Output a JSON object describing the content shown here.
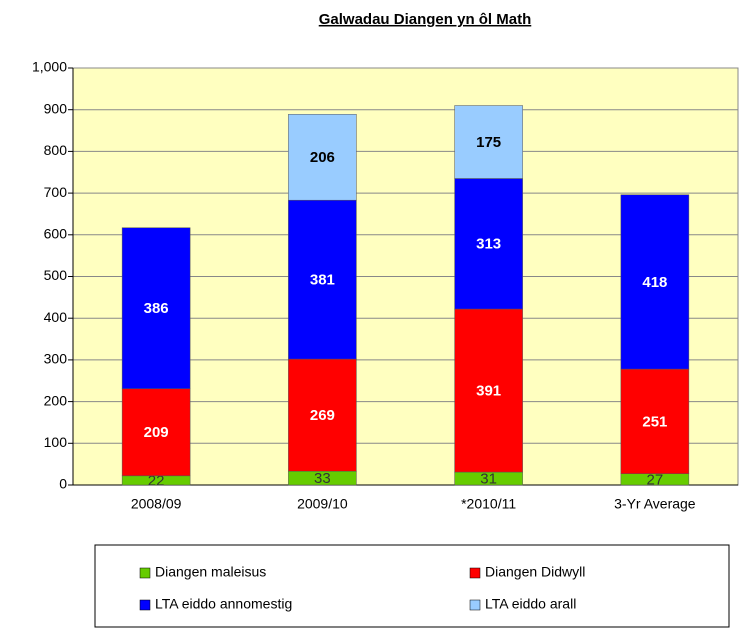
{
  "chart_data": {
    "type": "bar",
    "stacked": true,
    "title": "Galwadau Diangen yn ôl Math",
    "categories": [
      "2008/09",
      "2009/10",
      "*2010/11",
      "3-Yr Average"
    ],
    "series": [
      {
        "name": "Diangen maleisus",
        "color": "#66cc00",
        "values": [
          22,
          33,
          31,
          27
        ]
      },
      {
        "name": "Diangen Didwyll",
        "color": "#ff0000",
        "values": [
          209,
          269,
          391,
          251
        ]
      },
      {
        "name": "LTA eiddo annomestig",
        "color": "#0000ff",
        "values": [
          386,
          381,
          313,
          418
        ]
      },
      {
        "name": "LTA eiddo arall",
        "color": "#99ccff",
        "values": [
          null,
          206,
          175,
          null
        ]
      }
    ],
    "ylim": [
      0,
      1000
    ],
    "yticks": [
      0,
      100,
      200,
      300,
      400,
      500,
      600,
      700,
      800,
      900,
      {
        "value": 1000,
        "label": "1,000"
      }
    ],
    "grid": true,
    "plot_background": "#ffffc0",
    "legend_position": "bottom"
  }
}
